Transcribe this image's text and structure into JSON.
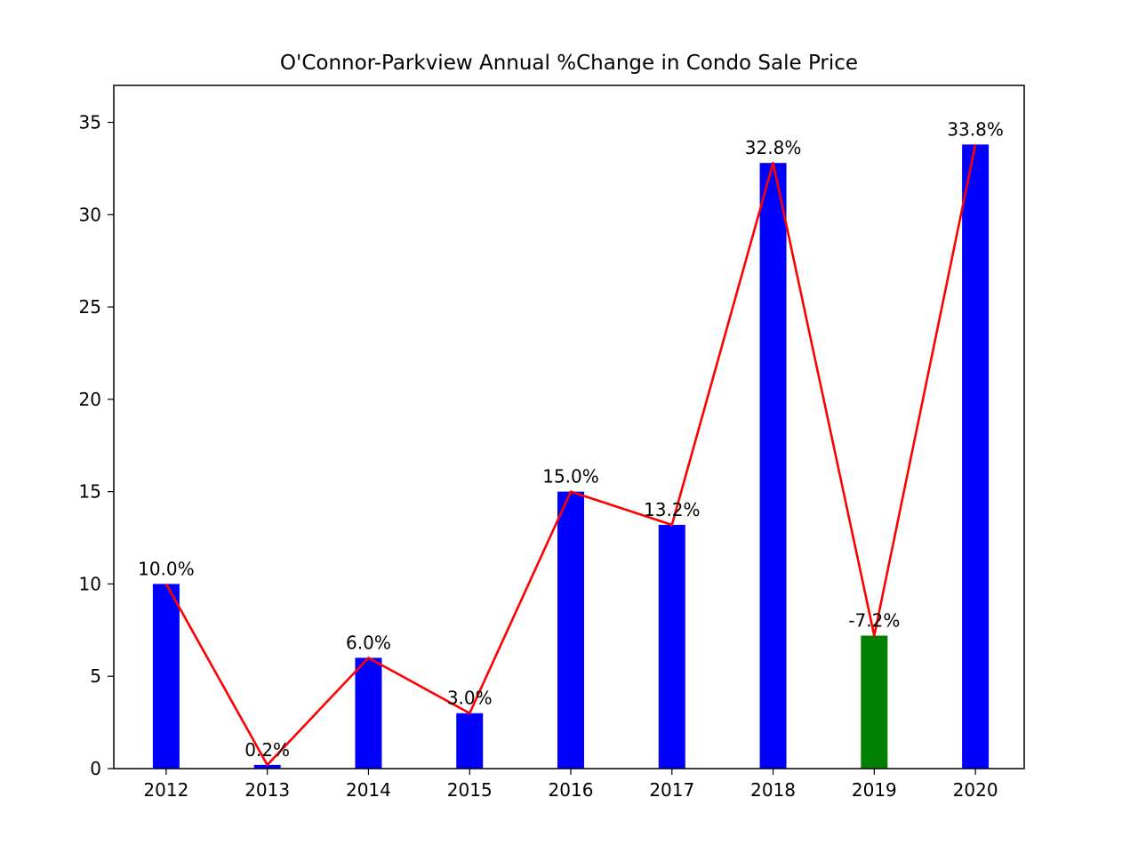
{
  "chart_data": {
    "type": "bar",
    "title": "O'Connor-Parkview Annual %Change in Condo Sale Price",
    "xlabel": "",
    "ylabel": "",
    "categories": [
      "2012",
      "2013",
      "2014",
      "2015",
      "2016",
      "2017",
      "2018",
      "2019",
      "2020"
    ],
    "values": [
      10.0,
      0.2,
      6.0,
      3.0,
      15.0,
      13.2,
      32.8,
      7.2,
      33.8
    ],
    "value_labels": [
      "10.0%",
      "0.2%",
      "6.0%",
      "3.0%",
      "15.0%",
      "13.2%",
      "32.8%",
      "-7.2%",
      "33.8%"
    ],
    "bar_colors": [
      "#0000ff",
      "#0000ff",
      "#0000ff",
      "#0000ff",
      "#0000ff",
      "#0000ff",
      "#0000ff",
      "#008000",
      "#0000ff"
    ],
    "line_color": "#ff0000",
    "ylim": [
      0,
      37
    ],
    "yticks": [
      0,
      5,
      10,
      15,
      20,
      25,
      30,
      35
    ],
    "grid": false,
    "legend": "none"
  }
}
